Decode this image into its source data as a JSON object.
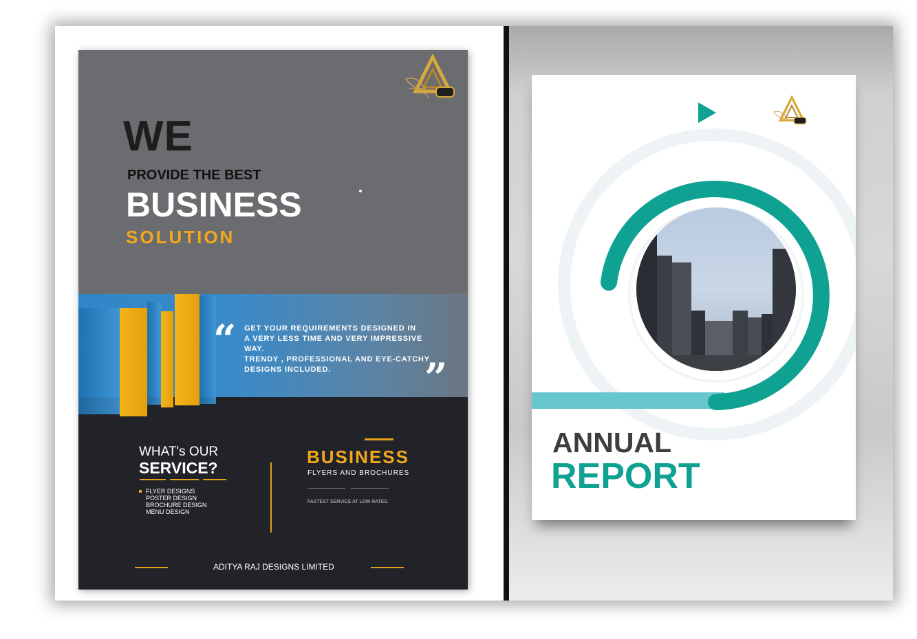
{
  "flyer": {
    "headline_we": "WE",
    "headline_provide": "PROVIDE THE BEST",
    "headline_business": "BUSINESS",
    "headline_solution": "SOLUTION",
    "quote_open": "“",
    "quote_close": "”",
    "quote_lines": [
      "GET YOUR REQUIREMENTS DESIGNED IN",
      "A VERY LESS TIME AND VERY IMPRESSIVE",
      "WAY.",
      "TRENDY , PROFESSIONAL AND EYE-CATCHY",
      "DESIGNS INCLUDED."
    ],
    "service_heading_1": "WHAT's OUR",
    "service_heading_2": "SERVICE?",
    "services": [
      "FLYER DESIGNS",
      "POSTER DESIGN",
      "BROCHURE DESIGN",
      "MENU DESIGN"
    ],
    "business_label": "BUSINESS",
    "business_sub": "FLYERS AND BROCHURES",
    "business_tagline": "FASTEST SERVICE AT LOW RATES.",
    "company": "ADITYA RAJ DESIGNS LIMITED",
    "logo_icon": "gold-triangle-logo-icon"
  },
  "report": {
    "title_1": "ANNUAL",
    "title_2": "REPORT",
    "logo_icon": "gold-triangle-logo-icon",
    "play_icon": "teal-triangle-icon",
    "photo": "city-skyline-photo"
  },
  "colors": {
    "flyer_gray": "#6b6c70",
    "flyer_dark": "#222329",
    "accent_gold": "#f3a81c",
    "accent_blue": "#2f86c7",
    "report_teal": "#0fa191",
    "report_light_teal": "#68c6cf"
  }
}
